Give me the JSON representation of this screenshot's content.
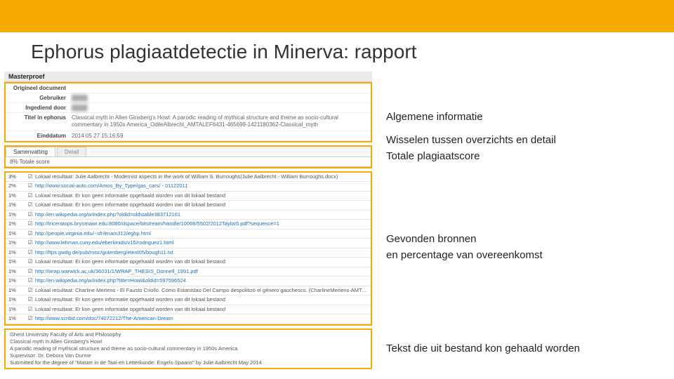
{
  "slide": {
    "title": "Ephorus plagiaatdetectie in Minerva: rapport",
    "topbar_color": "#f6a900"
  },
  "annotations": {
    "general": "Algemene informatie",
    "tabs_score_1": "Wisselen tussen overzichts en detail",
    "tabs_score_2": "Totale plagiaatscore",
    "sources_1": "Gevonden bronnen",
    "sources_2": "en percentage van overeenkomst",
    "extracted": "Tekst die uit bestand kon gehaald worden"
  },
  "report": {
    "header": "Masterproef",
    "meta": {
      "original_label": "Origineel document",
      "student_label": "Gebruiker",
      "student_value": "████",
      "submitted_by_label": "Ingediend door",
      "submitted_by_value": "████",
      "title_label": "Titel in ephorus",
      "title_value": "Classical myth in Allen Ginsberg's Howl: A parodic reading of mythical structure and theme as socio-cultural commentary in 1950s America_OdileAlbrecht_AMTALEF6431-465699-1421180362-Classical_myth",
      "date_label": "Einddatum",
      "date_value": "2014 05 27 15:16:59"
    },
    "tabs": {
      "summary": "Samenvatting",
      "detail": "Detail"
    },
    "score_label": "8% Totale score"
  },
  "results": [
    {
      "pct": "3%",
      "link": false,
      "text": "Lokaal resultaat: Julie Aalbrecht - Modernist aspects in the work of William S. Burroughs(Julie Aalbrecht - William Burroughs.docx)"
    },
    {
      "pct": "2%",
      "link": true,
      "text": "http://www.social-auto.com/Amos_By_Type/gas_cars/ - 01122011"
    },
    {
      "pct": "1%",
      "link": false,
      "text": "Lokaal resultaat: Er kon geen informatie opgehaald worden van dit lokaal bestand"
    },
    {
      "pct": "1%",
      "link": false,
      "text": "Lokaal resultaat: Er kon geen informatie opgehaald worden van dit lokaal bestand"
    },
    {
      "pct": "1%",
      "link": true,
      "text": "http://en.wikipedia.org/w/index.php?oldid=oldstable383712161"
    },
    {
      "pct": "1%",
      "link": true,
      "text": "http://triceratops.brynmawr.edu:8080/dspace/bitstream/handle/10066/5502/2012Taylor5.pdf?sequence=1"
    },
    {
      "pct": "1%",
      "link": true,
      "text": "http://people.virginia.edu/~sfr/enam312/eghp.html"
    },
    {
      "pct": "1%",
      "link": true,
      "text": "http://www.lehman.cuny.edu/eberkinids/v15/rodriguez1.html"
    },
    {
      "pct": "1%",
      "link": true,
      "text": "http://ftps.gwdg.de/pub/misc/gutenberg/etext05/bough11.txt"
    },
    {
      "pct": "1%",
      "link": false,
      "text": "Lokaal resultaat: Er kon geen informatie opgehaald worden van dit lokaal bestand"
    },
    {
      "pct": "1%",
      "link": true,
      "text": "http://wrap.warwick.ac.uk/36031/1/WRAP_THESIS_Donnell_1991.pdf"
    },
    {
      "pct": "1%",
      "link": true,
      "text": "http://en.wikipedia.org/w/index.php?title=Howl&oldid=597596524"
    },
    {
      "pct": "1%",
      "link": false,
      "text": "Lokaal resultaat: Charline Mertens - El Fausto Criollo. Cómo Estanislao Del Campo despolitizó el género gauchesco. (CharlineMertens-AMTALEF6431.173891 14007615)8 thesis Fausto Charline Mertens.pdf)"
    },
    {
      "pct": "1%",
      "link": false,
      "text": "Lokaal resultaat: Er kon geen informatie opgehaald worden van dit lokaal bestand"
    },
    {
      "pct": "1%",
      "link": false,
      "text": "Lokaal resultaat: Er kon geen informatie opgehaald worden van dit lokaal bestand"
    },
    {
      "pct": "1%",
      "link": true,
      "text": "http://www.scribd.com/doc/74072212/The-American-Dream"
    }
  ],
  "footer": {
    "line1": "Ghent University Faculty of Arts and Philosophy",
    "line2": "Classical myth in Allen Ginsberg's Howl",
    "line3": "A parodic reading of mythical structure and theme as socio-cultural commentary in 1950s America",
    "line4": "Supervisor: Dr. Debora Van Durme",
    "line5": "Submitted for the degree of \"Master in de Taal-en Letterkunde: Engels-Spaans\" by Julie Aalbrecht May 2014"
  }
}
